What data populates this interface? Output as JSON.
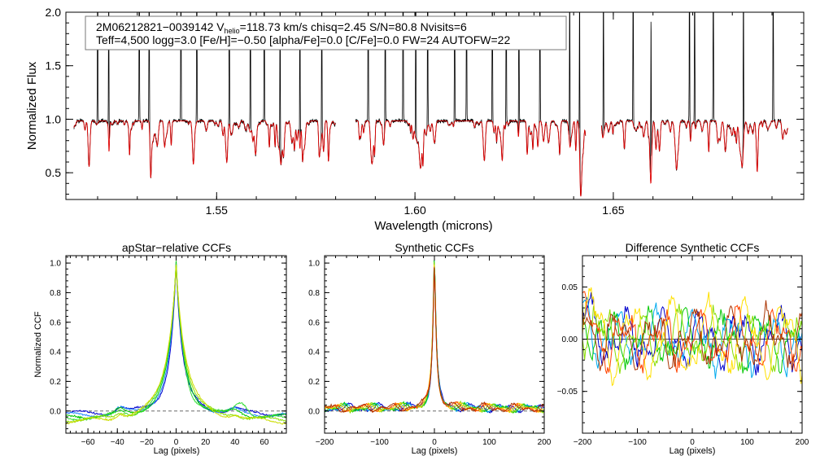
{
  "chart_data": [
    {
      "id": "spectrum",
      "type": "line",
      "title": "",
      "xlabel": "Wavelength (microns)",
      "ylabel": "Normalized Flux",
      "xlim": [
        1.512,
        1.698
      ],
      "ylim": [
        0.25,
        2.0
      ],
      "xticks": [
        1.55,
        1.6,
        1.65
      ],
      "xtick_labels": [
        "1.55",
        "1.60",
        "1.65"
      ],
      "yticks": [
        0.5,
        1.0,
        1.5,
        2.0
      ],
      "ytick_labels": [
        "0.5",
        "1.0",
        "1.5",
        "2.0"
      ],
      "segments": [
        [
          1.514,
          1.58
        ],
        [
          1.585,
          1.643
        ],
        [
          1.647,
          1.694
        ]
      ],
      "sky_lines": [
        1.52,
        1.5228,
        1.5305,
        1.533,
        1.541,
        1.545,
        1.5532,
        1.5585,
        1.562,
        1.566,
        1.571,
        1.5765,
        1.5882,
        1.5925,
        1.597,
        1.6002,
        1.6032,
        1.61,
        1.613,
        1.6195,
        1.623,
        1.6262,
        1.6315,
        1.639,
        1.6415,
        1.6475,
        1.655,
        1.6595,
        1.6692,
        1.6705,
        1.6752,
        1.6828,
        1.6903
      ],
      "series": [
        {
          "name": "Observed spectrum",
          "color": "#000000"
        },
        {
          "name": "Model fit",
          "color": "#e00000"
        }
      ],
      "annotation": {
        "line1_pre": "2M06212821−0039142  V",
        "line1_sub": "helio",
        "line1_post": "=118.73 km/s  chisq=2.45  S/N=80.8  Nvisits=6",
        "line2": "Teff=4,500 logg=3.0 [Fe/H]=−0.50 [alpha/Fe]=0.0 [C/Fe]=0.0 FW=24 AUTOFW=22"
      }
    },
    {
      "id": "apstar_ccf",
      "type": "line",
      "title": "apStar−relative CCFs",
      "xlabel": "Lag (pixels)",
      "ylabel": "Normalized CCF",
      "xlim": [
        -75,
        75
      ],
      "ylim": [
        -0.15,
        1.05
      ],
      "xticks": [
        -60,
        -40,
        -20,
        0,
        20,
        40,
        60
      ],
      "xtick_labels": [
        "−60",
        "−40",
        "−20",
        "0",
        "20",
        "40",
        "60"
      ],
      "yticks": [
        0.0,
        0.2,
        0.4,
        0.6,
        0.8,
        1.0
      ],
      "ytick_labels": [
        "0.0",
        "0.2",
        "0.4",
        "0.6",
        "0.8",
        "1.0"
      ],
      "series": [
        {
          "name": "visit 1",
          "color": "#0000cc"
        },
        {
          "name": "visit 2",
          "color": "#2288ff"
        },
        {
          "name": "visit 3",
          "color": "#00c800"
        },
        {
          "name": "visit 4",
          "color": "#33dd33"
        },
        {
          "name": "visit 5",
          "color": "#88dd00"
        },
        {
          "name": "visit 6",
          "color": "#ccdd00"
        }
      ]
    },
    {
      "id": "synthetic_ccf",
      "type": "line",
      "title": "Synthetic CCFs",
      "xlabel": "Lag (pixels)",
      "ylabel": "",
      "xlim": [
        -200,
        200
      ],
      "ylim": [
        -0.15,
        1.05
      ],
      "xticks": [
        -200,
        -100,
        0,
        100,
        200
      ],
      "xtick_labels": [
        "−200",
        "−100",
        "0",
        "100",
        "200"
      ],
      "yticks": [
        0.0,
        0.2,
        0.4,
        0.6,
        0.8,
        1.0
      ],
      "ytick_labels": [
        "0.0",
        "0.2",
        "0.4",
        "0.6",
        "0.8",
        "1.0"
      ],
      "series": [
        {
          "name": "visit 1",
          "color": "#0000cc"
        },
        {
          "name": "visit 2",
          "color": "#00aaee"
        },
        {
          "name": "visit 3",
          "color": "#00c800"
        },
        {
          "name": "visit 4",
          "color": "#88dd00"
        },
        {
          "name": "visit 5",
          "color": "#ffd000"
        },
        {
          "name": "visit 6",
          "color": "#ff4400"
        },
        {
          "name": "combined",
          "color": "#aa3300"
        }
      ]
    },
    {
      "id": "diff_ccf",
      "type": "line",
      "title": "Difference Synthetic CCFs",
      "xlabel": "Lag (pixels)",
      "ylabel": "",
      "xlim": [
        -200,
        200
      ],
      "ylim": [
        -0.09,
        0.08
      ],
      "xticks": [
        -200,
        -100,
        0,
        100,
        200
      ],
      "xtick_labels": [
        "−200",
        "−100",
        "0",
        "100",
        "200"
      ],
      "yticks": [
        -0.05,
        0.0,
        0.05
      ],
      "ytick_labels": [
        "−0.05",
        "0.00",
        "0.05"
      ],
      "series": [
        {
          "name": "visit 1",
          "color": "#0000cc"
        },
        {
          "name": "visit 2",
          "color": "#00aaee"
        },
        {
          "name": "visit 3",
          "color": "#00c800"
        },
        {
          "name": "visit 4",
          "color": "#88dd00"
        },
        {
          "name": "visit 5",
          "color": "#ffe000"
        },
        {
          "name": "visit 6",
          "color": "#ff4400"
        },
        {
          "name": "combined",
          "color": "#aa3300"
        }
      ]
    }
  ]
}
